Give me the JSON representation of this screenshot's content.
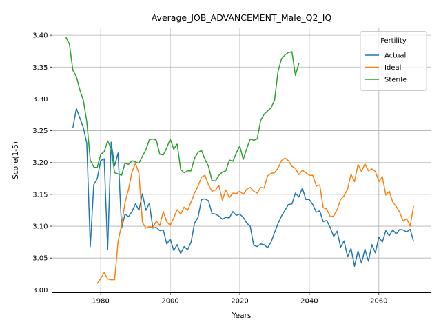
{
  "chart_data": {
    "type": "line",
    "title": "Average_JOB_ADVANCEMENT_Male_Q2_IQ",
    "xlabel": "Years",
    "ylabel": "Score(1-5)",
    "xlim": [
      1966,
      2075
    ],
    "ylim": [
      2.9955,
      3.4115
    ],
    "xticks": [
      1980,
      2000,
      2020,
      2040,
      2060
    ],
    "xtick_labels": [
      "1980",
      "2000",
      "2020",
      "2040",
      "2060"
    ],
    "yticks": [
      3.0,
      3.05,
      3.1,
      3.15,
      3.2,
      3.25,
      3.3,
      3.35,
      3.4
    ],
    "ytick_labels": [
      "3.00",
      "3.05",
      "3.10",
      "3.15",
      "3.20",
      "3.25",
      "3.30",
      "3.35",
      "3.40"
    ],
    "grid": true,
    "legend": {
      "title": "Fertility",
      "position": "top-right"
    },
    "series": [
      {
        "name": "Actual",
        "color": "#1f77b4",
        "x": [
          1972,
          1973,
          1974,
          1975,
          1976,
          1977,
          1978,
          1979,
          1980,
          1981,
          1982,
          1983,
          1984,
          1985,
          1986,
          1987,
          1988,
          1989,
          1990,
          1991,
          1992,
          1993,
          1994,
          1995,
          1996,
          1997,
          1998,
          1999,
          2000,
          2001,
          2002,
          2003,
          2004,
          2005,
          2006,
          2007,
          2008,
          2009,
          2010,
          2011,
          2012,
          2013,
          2014,
          2015,
          2016,
          2017,
          2018,
          2019,
          2020,
          2021,
          2022,
          2023,
          2024,
          2025,
          2026,
          2027,
          2028,
          2029,
          2030,
          2031,
          2032,
          2033,
          2034,
          2035,
          2036,
          2037,
          2038,
          2039,
          2040,
          2041,
          2042,
          2043,
          2044,
          2045,
          2046,
          2047,
          2048,
          2049,
          2050,
          2051,
          2052,
          2053,
          2054,
          2055,
          2056,
          2057,
          2058,
          2059,
          2060,
          2061,
          2062,
          2063,
          2064,
          2065,
          2066,
          2067,
          2068,
          2069,
          2070
        ],
        "values": [
          3.255,
          3.285,
          3.27,
          3.255,
          3.23,
          3.068,
          3.165,
          3.175,
          3.203,
          3.206,
          3.063,
          3.232,
          3.195,
          3.215,
          3.097,
          3.119,
          3.115,
          3.123,
          3.135,
          3.125,
          3.151,
          3.125,
          3.136,
          3.097,
          3.098,
          3.093,
          3.094,
          3.072,
          3.08,
          3.062,
          3.071,
          3.057,
          3.068,
          3.063,
          3.075,
          3.105,
          3.114,
          3.142,
          3.143,
          3.14,
          3.12,
          3.119,
          3.116,
          3.111,
          3.114,
          3.113,
          3.123,
          3.117,
          3.119,
          3.114,
          3.105,
          3.1,
          3.07,
          3.068,
          3.072,
          3.071,
          3.066,
          3.075,
          3.09,
          3.104,
          3.116,
          3.125,
          3.134,
          3.135,
          3.152,
          3.146,
          3.16,
          3.142,
          3.142,
          3.134,
          3.122,
          3.124,
          3.107,
          3.109,
          3.098,
          3.084,
          3.092,
          3.067,
          3.077,
          3.052,
          3.065,
          3.037,
          3.061,
          3.042,
          3.064,
          3.045,
          3.071,
          3.058,
          3.083,
          3.075,
          3.093,
          3.085,
          3.094,
          3.088,
          3.095,
          3.094,
          3.091,
          3.095,
          3.076
        ]
      },
      {
        "name": "Ideal",
        "color": "#ff7f0e",
        "x": [
          1979,
          1980,
          1981,
          1982,
          1983,
          1984,
          1985,
          1986,
          1987,
          1988,
          1989,
          1990,
          1991,
          1992,
          1993,
          1994,
          1995,
          1996,
          1997,
          1998,
          1999,
          2000,
          2001,
          2002,
          2003,
          2004,
          2005,
          2006,
          2007,
          2008,
          2009,
          2010,
          2011,
          2012,
          2013,
          2014,
          2015,
          2016,
          2017,
          2018,
          2019,
          2020,
          2021,
          2022,
          2023,
          2024,
          2025,
          2026,
          2027,
          2028,
          2029,
          2030,
          2031,
          2032,
          2033,
          2034,
          2035,
          2036,
          2037,
          2038,
          2039,
          2040,
          2041,
          2042,
          2043,
          2044,
          2045,
          2046,
          2047,
          2048,
          2049,
          2050,
          2051,
          2052,
          2053,
          2054,
          2055,
          2056,
          2057,
          2058,
          2059,
          2060,
          2061,
          2062,
          2063,
          2064,
          2065,
          2066,
          2067,
          2068,
          2069,
          2070
        ],
        "values": [
          3.01,
          3.018,
          3.027,
          3.017,
          3.016,
          3.016,
          3.076,
          3.102,
          3.137,
          3.158,
          3.185,
          3.199,
          3.183,
          3.106,
          3.097,
          3.099,
          3.098,
          3.108,
          3.101,
          3.123,
          3.107,
          3.101,
          3.113,
          3.126,
          3.119,
          3.13,
          3.125,
          3.138,
          3.152,
          3.163,
          3.177,
          3.18,
          3.165,
          3.155,
          3.157,
          3.164,
          3.141,
          3.157,
          3.145,
          3.152,
          3.151,
          3.155,
          3.15,
          3.158,
          3.161,
          3.155,
          3.152,
          3.161,
          3.16,
          3.179,
          3.183,
          3.184,
          3.191,
          3.203,
          3.207,
          3.203,
          3.194,
          3.191,
          3.181,
          3.188,
          3.184,
          3.18,
          3.18,
          3.163,
          3.165,
          3.129,
          3.127,
          3.115,
          3.116,
          3.126,
          3.142,
          3.148,
          3.158,
          3.182,
          3.17,
          3.197,
          3.186,
          3.198,
          3.187,
          3.19,
          3.186,
          3.17,
          3.178,
          3.149,
          3.155,
          3.138,
          3.131,
          3.122,
          3.108,
          3.112,
          3.1,
          3.132
        ]
      },
      {
        "name": "Sterile",
        "color": "#2ca02c",
        "x": [
          1970,
          1971,
          1972,
          1973,
          1974,
          1975,
          1976,
          1977,
          1978,
          1979,
          1980,
          1981,
          1982,
          1983,
          1984,
          1985,
          1986,
          1987,
          1988,
          1989,
          1990,
          1991,
          1992,
          1993,
          1994,
          1995,
          1996,
          1997,
          1998,
          1999,
          2000,
          2001,
          2002,
          2003,
          2004,
          2005,
          2006,
          2007,
          2008,
          2009,
          2010,
          2011,
          2012,
          2013,
          2014,
          2015,
          2016,
          2017,
          2018,
          2019,
          2020,
          2021,
          2022,
          2023,
          2024,
          2025,
          2026,
          2027,
          2028,
          2029,
          2030,
          2031,
          2032,
          2033,
          2034,
          2035,
          2036,
          2037
        ],
        "values": [
          3.397,
          3.386,
          3.345,
          3.335,
          3.314,
          3.298,
          3.264,
          3.204,
          3.193,
          3.192,
          3.213,
          3.217,
          3.234,
          3.222,
          3.184,
          3.182,
          3.18,
          3.199,
          3.197,
          3.203,
          3.201,
          3.199,
          3.21,
          3.22,
          3.236,
          3.237,
          3.235,
          3.213,
          3.212,
          3.223,
          3.237,
          3.221,
          3.229,
          3.189,
          3.184,
          3.187,
          3.187,
          3.207,
          3.216,
          3.219,
          3.205,
          3.194,
          3.172,
          3.171,
          3.18,
          3.185,
          3.187,
          3.204,
          3.202,
          3.215,
          3.226,
          3.205,
          3.222,
          3.237,
          3.235,
          3.237,
          3.266,
          3.276,
          3.281,
          3.286,
          3.298,
          3.343,
          3.363,
          3.369,
          3.373,
          3.374,
          3.337,
          3.356
        ]
      }
    ]
  }
}
